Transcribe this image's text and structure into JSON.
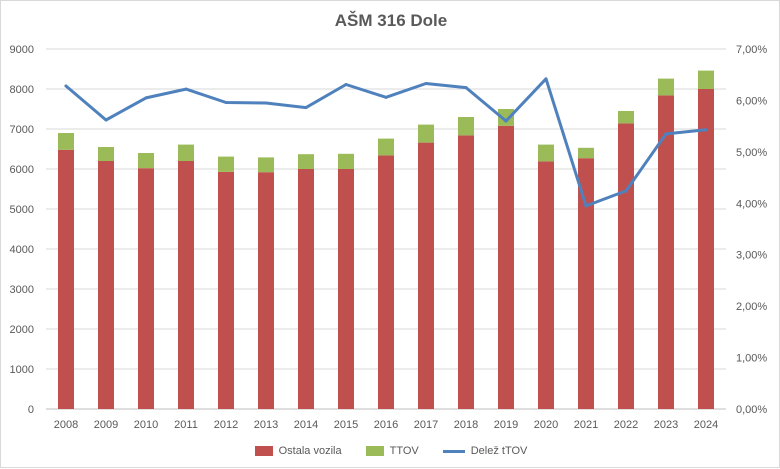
{
  "chart_data": {
    "type": "bar",
    "title": "AŠM 316 Dole",
    "categories": [
      "2008",
      "2009",
      "2010",
      "2011",
      "2012",
      "2013",
      "2014",
      "2015",
      "2016",
      "2017",
      "2018",
      "2019",
      "2020",
      "2021",
      "2022",
      "2023",
      "2024"
    ],
    "series": [
      {
        "name": "Ostala vozila",
        "type": "bar",
        "stack": "total",
        "axis": "left",
        "color": "#c0504d",
        "values": [
          6480,
          6200,
          6020,
          6200,
          5930,
          5920,
          6000,
          6000,
          6340,
          6660,
          6840,
          7080,
          6190,
          6270,
          7140,
          7840,
          8000
        ]
      },
      {
        "name": "TTOV",
        "type": "bar",
        "stack": "total",
        "axis": "left",
        "color": "#9bbb59",
        "values": [
          420,
          350,
          380,
          410,
          380,
          370,
          370,
          380,
          420,
          450,
          460,
          420,
          420,
          260,
          310,
          420,
          460
        ]
      },
      {
        "name": "Delež tTOV",
        "type": "line",
        "axis": "right",
        "color": "#4f81bd",
        "values": [
          0.0628,
          0.0562,
          0.0605,
          0.0622,
          0.0596,
          0.0595,
          0.0586,
          0.0631,
          0.0606,
          0.0633,
          0.0625,
          0.056,
          0.0642,
          0.0395,
          0.0424,
          0.0535,
          0.0543
        ]
      }
    ],
    "y_left": {
      "min": 0,
      "max": 9000,
      "ticks": [
        "0",
        "1000",
        "2000",
        "3000",
        "4000",
        "5000",
        "6000",
        "7000",
        "8000",
        "9000"
      ]
    },
    "y_right": {
      "min": 0,
      "max": 0.07,
      "ticks": [
        "0,00%",
        "1,00%",
        "2,00%",
        "3,00%",
        "4,00%",
        "5,00%",
        "6,00%",
        "7,00%"
      ]
    },
    "grid": true,
    "legend_position": "bottom"
  }
}
